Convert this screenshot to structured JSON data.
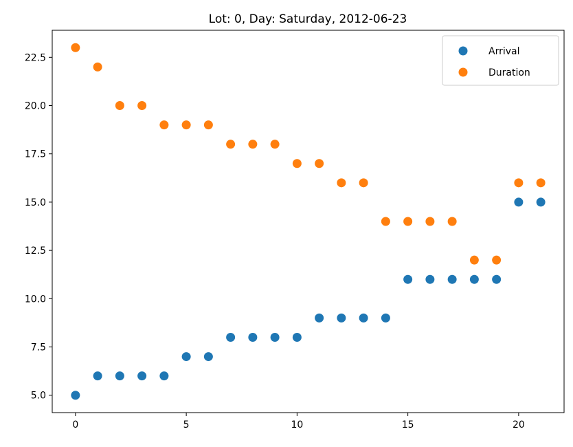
{
  "chart_data": {
    "type": "scatter",
    "title": "Lot: 0, Day: Saturday, 2012-06-23",
    "xlabel": "",
    "ylabel": "",
    "xlim": [
      -1.05,
      22.05
    ],
    "ylim": [
      4.1,
      23.9
    ],
    "x_ticks": [
      "0",
      "5",
      "10",
      "15",
      "20"
    ],
    "y_ticks": [
      "5.0",
      "7.5",
      "10.0",
      "12.5",
      "15.0",
      "17.5",
      "20.0",
      "22.5"
    ],
    "grid": false,
    "legend_position": "top-right",
    "x": [
      0,
      1,
      2,
      3,
      4,
      5,
      6,
      7,
      8,
      9,
      10,
      11,
      12,
      13,
      14,
      15,
      16,
      17,
      18,
      19,
      20,
      21
    ],
    "series": [
      {
        "name": "Arrival",
        "color": "#1f77b4",
        "values": [
          5,
          6,
          6,
          6,
          6,
          7,
          7,
          8,
          8,
          8,
          8,
          9,
          9,
          9,
          9,
          11,
          11,
          11,
          11,
          11,
          15,
          15
        ]
      },
      {
        "name": "Duration",
        "color": "#ff7f0e",
        "values": [
          23,
          22,
          20,
          20,
          19,
          19,
          19,
          18,
          18,
          18,
          17,
          17,
          16,
          16,
          14,
          14,
          14,
          14,
          12,
          12,
          16,
          16
        ]
      }
    ]
  }
}
